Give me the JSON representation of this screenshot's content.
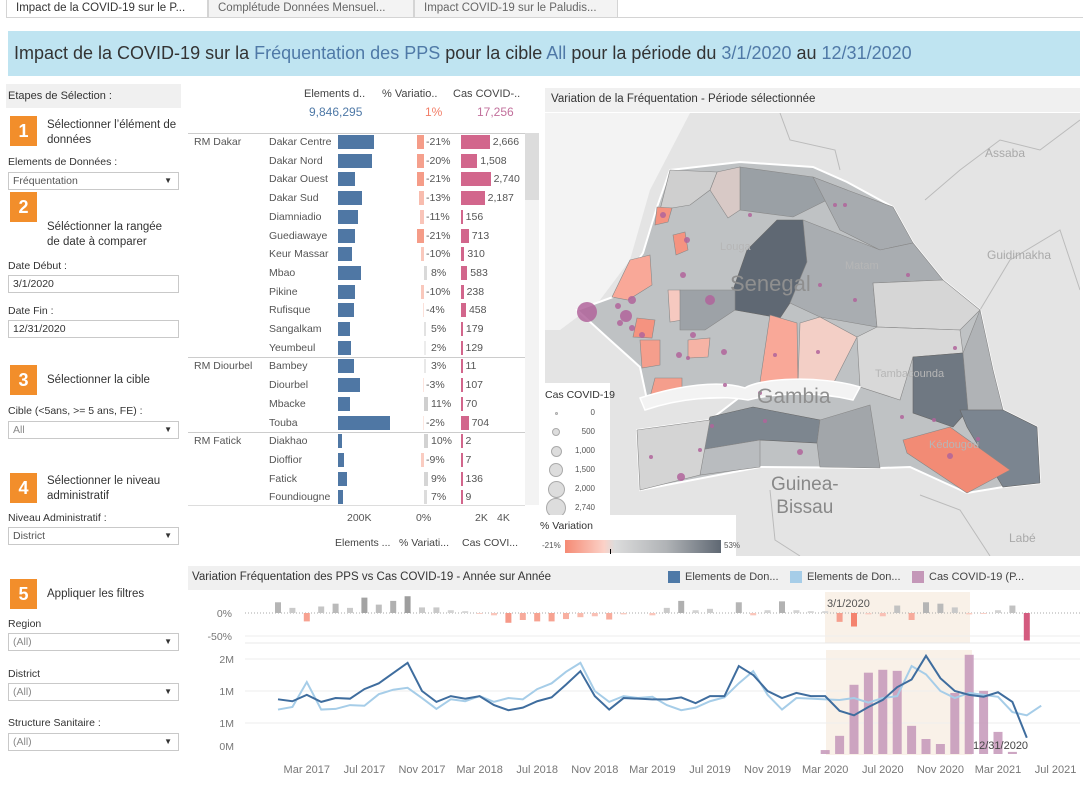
{
  "tabs": [
    {
      "label": "Impact de la COVID-19 sur le P...",
      "active": true
    },
    {
      "label": "Complétude Données Mensuel...",
      "active": false
    },
    {
      "label": "Impact COVID-19 sur le Paludis...",
      "active": false
    }
  ],
  "banner": {
    "p1": "Impact de la COVID-19 sur la ",
    "element": "Fréquentation des PPS",
    "p2": " pour la cible ",
    "cible": "All",
    "p3": " pour la période du ",
    "start": "3/1/2020",
    "p4": " au ",
    "end": "12/31/2020"
  },
  "left": {
    "header": "Etapes de Sélection :",
    "steps": [
      {
        "num": "1",
        "text": "Sélectionner l’élément de données"
      },
      {
        "num": "2",
        "text": "Séléctionner la rangée de date à comparer"
      },
      {
        "num": "3",
        "text": "Sélectionner la cible"
      },
      {
        "num": "4",
        "text": "Sélectionner le niveau administratif"
      },
      {
        "num": "5",
        "text": "Appliquer les filtres"
      }
    ],
    "element_label": "Elements de Données :",
    "element_value": "Fréquentation",
    "date_start_label": "Date Début :",
    "date_start_value": "3/1/2020",
    "date_end_label": "Date Fin :",
    "date_end_value": "12/31/2020",
    "cible_label": "Cible (<5ans, >= 5 ans, FE) :",
    "cible_value": "All",
    "niveau_label": "Niveau Administratif :",
    "niveau_value": "District",
    "region_label": "Region",
    "region_value": "(All)",
    "district_label": "District",
    "district_value": "(All)",
    "structure_label": "Structure Sanitaire :",
    "structure_value": "(All)"
  },
  "table": {
    "headers": [
      "Elements d..",
      "% Variatio..",
      "Cas COVID-.."
    ],
    "totals": [
      "9,846,295",
      "1%",
      "17,256"
    ],
    "total_colors": [
      "#4f79a7",
      "#f27e68",
      "#c2709c"
    ],
    "axis_ticks": [
      "200K",
      "0%",
      "2K",
      "4K"
    ],
    "footers": [
      "Elements ...",
      "% Variati...",
      "Cas COVI..."
    ],
    "colors": {
      "elements": "#4f77a4",
      "cases": "#d2668c",
      "neg": "#f59c88",
      "pos": "#cfcfcf"
    },
    "groups": [
      {
        "region": "RM Dakar",
        "rows": [
          {
            "name": "Dakar Centre",
            "elements": 327000,
            "variation": -21,
            "variation_label": "-21%",
            "cases": 2666,
            "cases_label": "2,666"
          },
          {
            "name": "Dakar Nord",
            "elements": 309000,
            "variation": -20,
            "variation_label": "-20%",
            "cases": 1508,
            "cases_label": "1,508"
          },
          {
            "name": "Dakar Ouest",
            "elements": 155000,
            "variation": -21,
            "variation_label": "-21%",
            "cases": 2740,
            "cases_label": "2,740"
          },
          {
            "name": "Dakar Sud",
            "elements": 218000,
            "variation": -13,
            "variation_label": "-13%",
            "cases": 2187,
            "cases_label": "2,187"
          },
          {
            "name": "Diamniadio",
            "elements": 182000,
            "variation": -11,
            "variation_label": "-11%",
            "cases": 156,
            "cases_label": "156"
          },
          {
            "name": "Guediawaye",
            "elements": 155000,
            "variation": -21,
            "variation_label": "-21%",
            "cases": 713,
            "cases_label": "713"
          },
          {
            "name": "Keur Massar",
            "elements": 127000,
            "variation": -10,
            "variation_label": "-10%",
            "cases": 310,
            "cases_label": "310"
          },
          {
            "name": "Mbao",
            "elements": 209000,
            "variation": 8,
            "variation_label": "8%",
            "cases": 583,
            "cases_label": "583"
          },
          {
            "name": "Pikine",
            "elements": 155000,
            "variation": -10,
            "variation_label": "-10%",
            "cases": 238,
            "cases_label": "238"
          },
          {
            "name": "Rufisque",
            "elements": 145000,
            "variation": -4,
            "variation_label": "-4%",
            "cases": 458,
            "cases_label": "458"
          },
          {
            "name": "Sangalkam",
            "elements": 109000,
            "variation": 5,
            "variation_label": "5%",
            "cases": 179,
            "cases_label": "179"
          },
          {
            "name": "Yeumbeul",
            "elements": 118000,
            "variation": 2,
            "variation_label": "2%",
            "cases": 129,
            "cases_label": "129"
          }
        ]
      },
      {
        "region": "RM Diourbel",
        "rows": [
          {
            "name": "Bambey",
            "elements": 145000,
            "variation": 3,
            "variation_label": "3%",
            "cases": 11,
            "cases_label": "11"
          },
          {
            "name": "Diourbel",
            "elements": 200000,
            "variation": -3,
            "variation_label": "-3%",
            "cases": 107,
            "cases_label": "107"
          },
          {
            "name": "Mbacke",
            "elements": 109000,
            "variation": 11,
            "variation_label": "11%",
            "cases": 70,
            "cases_label": "70"
          },
          {
            "name": "Touba",
            "elements": 473000,
            "variation": -2,
            "variation_label": "-2%",
            "cases": 704,
            "cases_label": "704"
          }
        ]
      },
      {
        "region": "RM Fatick",
        "rows": [
          {
            "name": "Diakhao",
            "elements": 36000,
            "variation": 10,
            "variation_label": "10%",
            "cases": 2,
            "cases_label": "2"
          },
          {
            "name": "Dioffior",
            "elements": 55000,
            "variation": -9,
            "variation_label": "-9%",
            "cases": 7,
            "cases_label": "7"
          },
          {
            "name": "Fatick",
            "elements": 82000,
            "variation": 9,
            "variation_label": "9%",
            "cases": 136,
            "cases_label": "136"
          },
          {
            "name": "Foundiougne",
            "elements": 45000,
            "variation": 7,
            "variation_label": "7%",
            "cases": 9,
            "cases_label": "9"
          }
        ]
      }
    ]
  },
  "map": {
    "title": "Variation de la Fréquentation - Période sélectionnée",
    "labels": {
      "assaba": "Assaba",
      "guidimakha": "Guidimakha",
      "senegal": "Senegal",
      "gambia": "Gambia",
      "guinea": "Guinea-",
      "bissau": "Bissau",
      "labe": "Labé",
      "louga": "Louga",
      "matam": "Matam",
      "tamba": "Tambacounda",
      "kedougou": "Kédougou"
    },
    "size_legend_title": "Cas COVID-19",
    "size_legend": [
      "0",
      "500",
      "1,000",
      "1,500",
      "2,000",
      "2,740"
    ],
    "color_legend_title": "% Variation",
    "color_min": "-21%",
    "color_max": "53%",
    "color_scale": [
      "#f58a74",
      "#dcdcdc",
      "#5f6873"
    ]
  },
  "trend": {
    "title": "Variation Fréquentation des PPS vs Cas COVID-19 - Année sur Année",
    "legend": [
      {
        "label": "Elements de Don...",
        "color": "#4e79a7"
      },
      {
        "label": "Elements de Don...",
        "color": "#a6cde8"
      },
      {
        "label": "Cas COVID-19 (P...",
        "color": "#c497b8"
      }
    ],
    "yoy_ticks": [
      "0%",
      "-50%"
    ],
    "y_ticks": [
      "2M",
      "1M",
      "1M",
      "0M"
    ],
    "x_ticks": [
      "Mar 2017",
      "Jul 2017",
      "Nov 2017",
      "Mar 2018",
      "Jul 2018",
      "Nov 2018",
      "Mar 2019",
      "Jul 2019",
      "Nov 2019",
      "Mar 2020",
      "Jul 2020",
      "Nov 2020",
      "Mar 2021",
      "Jul 2021"
    ],
    "annotation_start": "3/1/2020",
    "annotation_end": "12/31/2020",
    "months": [
      "2017-01",
      "2017-02",
      "2017-03",
      "2017-04",
      "2017-05",
      "2017-06",
      "2017-07",
      "2017-08",
      "2017-09",
      "2017-10",
      "2017-11",
      "2017-12",
      "2018-01",
      "2018-02",
      "2018-03",
      "2018-04",
      "2018-05",
      "2018-06",
      "2018-07",
      "2018-08",
      "2018-09",
      "2018-10",
      "2018-11",
      "2018-12",
      "2019-01",
      "2019-02",
      "2019-03",
      "2019-04",
      "2019-05",
      "2019-06",
      "2019-07",
      "2019-08",
      "2019-09",
      "2019-10",
      "2019-11",
      "2019-12",
      "2020-01",
      "2020-02",
      "2020-03",
      "2020-04",
      "2020-05",
      "2020-06",
      "2020-07",
      "2020-08",
      "2020-09",
      "2020-10",
      "2020-11",
      "2020-12",
      "2021-01",
      "2021-02",
      "2021-03",
      "2021-04",
      "2021-05",
      "2021-06"
    ],
    "series_current_M": [
      0.87,
      0.84,
      0.94,
      0.83,
      0.89,
      0.88,
      1.03,
      1.12,
      1.28,
      1.44,
      1.0,
      0.83,
      0.92,
      0.88,
      0.92,
      0.78,
      0.7,
      0.74,
      0.84,
      0.9,
      1.1,
      1.31,
      0.92,
      0.71,
      0.89,
      0.88,
      0.87,
      0.87,
      0.9,
      0.81,
      0.92,
      0.92,
      1.39,
      1.25,
      1.0,
      0.89,
      0.97,
      0.92,
      0.92,
      0.69,
      0.62,
      0.75,
      0.86,
      1.06,
      1.18,
      1.55,
      1.2,
      1.0,
      0.94,
      0.91,
      0.98,
      0.83,
      0.27
    ],
    "series_previous_M": [
      0.71,
      0.75,
      1.14,
      0.71,
      0.72,
      0.78,
      0.77,
      0.95,
      1.02,
      1.05,
      0.89,
      0.72,
      0.87,
      0.84,
      0.92,
      0.83,
      0.89,
      0.87,
      1.03,
      1.12,
      1.3,
      1.44,
      1.0,
      0.83,
      0.92,
      0.89,
      0.91,
      0.78,
      0.7,
      0.74,
      0.84,
      0.9,
      1.12,
      1.31,
      0.94,
      0.71,
      0.89,
      0.88,
      0.87,
      0.86,
      0.89,
      0.82,
      0.89,
      0.92,
      1.39,
      1.26,
      1.0,
      0.89,
      0.97,
      0.94,
      0.91,
      0.67,
      0.62,
      0.77
    ],
    "yoy_pct": [
      23,
      11,
      -18,
      14,
      20,
      11,
      33,
      18,
      26,
      36,
      12,
      12,
      6,
      4,
      -2,
      -5,
      -21,
      -15,
      -18,
      -18,
      -13,
      -9,
      -7,
      -14,
      -3,
      0,
      -5,
      11,
      26,
      6,
      9,
      0,
      23,
      -5,
      6,
      25,
      6,
      4,
      4,
      -19,
      -29,
      -3,
      -7,
      16,
      -15,
      23,
      20,
      12,
      -3,
      -2,
      6,
      16,
      -59
    ],
    "covid_cases": {
      "2020-03": 150,
      "2020-04": 690,
      "2020-05": 2630,
      "2020-06": 3090,
      "2020-07": 3200,
      "2020-08": 3160,
      "2020-09": 1070,
      "2020-10": 570,
      "2020-11": 380,
      "2020-12": 2320,
      "2021-01": 3770,
      "2021-02": 2400,
      "2021-03": 840,
      "2021-04": 80
    }
  }
}
